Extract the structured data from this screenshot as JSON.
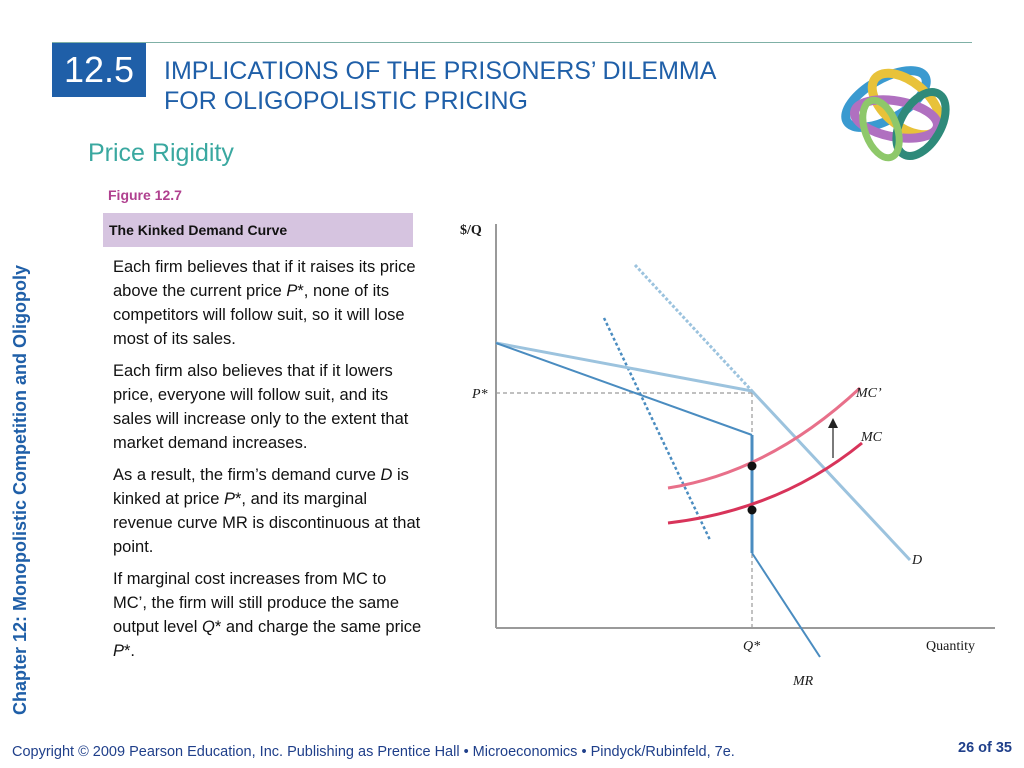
{
  "section_number": "12.5",
  "title_line1": "IMPLICATIONS OF THE PRISONERS’ DILEMMA",
  "title_line2": "FOR OLIGOPOLISTIC PRICING",
  "subtitle": "Price Rigidity",
  "side_label": "Chapter 12: Monopolistic Competition and Oligopoly",
  "figure_label": "Figure 12.7",
  "figure_title": "The Kinked Demand Curve",
  "p1_a": "Each firm believes that if it raises its price above the current price ",
  "p1_var": "P",
  "p1_b": "*, none of its competitors will follow suit, so it will lose most of its sales.",
  "p2": "Each firm also believes that if it lowers price, everyone will follow suit, and its sales will increase only to the extent that market demand increases.",
  "p3_a": "As a result, the firm’s demand curve ",
  "p3_var1": "D",
  "p3_b": " is kinked at price ",
  "p3_var2": "P",
  "p3_c": "*, and its marginal revenue curve MR is discontinuous at that point.",
  "p4_a": "If marginal cost increases from MC to MC’, the firm will still produce the same output level ",
  "p4_var1": "Q",
  "p4_b": "* and charge the same price ",
  "p4_var2": "P",
  "p4_c": "*.",
  "diagram": {
    "y_axis_label": "$/Q",
    "x_axis_label": "Quantity",
    "p_star": "P*",
    "q_star": "Q*",
    "mc_prime": "MC’",
    "mc": "MC",
    "d": "D",
    "mr": "MR"
  },
  "colors": {
    "title_blue": "#1f5fa8",
    "subtitle_teal": "#3aa8a0",
    "figure_purple": "#b0408f",
    "figure_box": "#d6c4e0",
    "mc_red": "#d8345a",
    "mc_prime_pink": "#e8708a",
    "demand_lightblue": "#9cc3de",
    "mr_blue": "#4a8cc0"
  },
  "footer": "Copyright © 2009 Pearson Education, Inc. Publishing as Prentice Hall • Microeconomics • Pindyck/Rubinfeld, 7e.",
  "page_number": "26 of 35"
}
